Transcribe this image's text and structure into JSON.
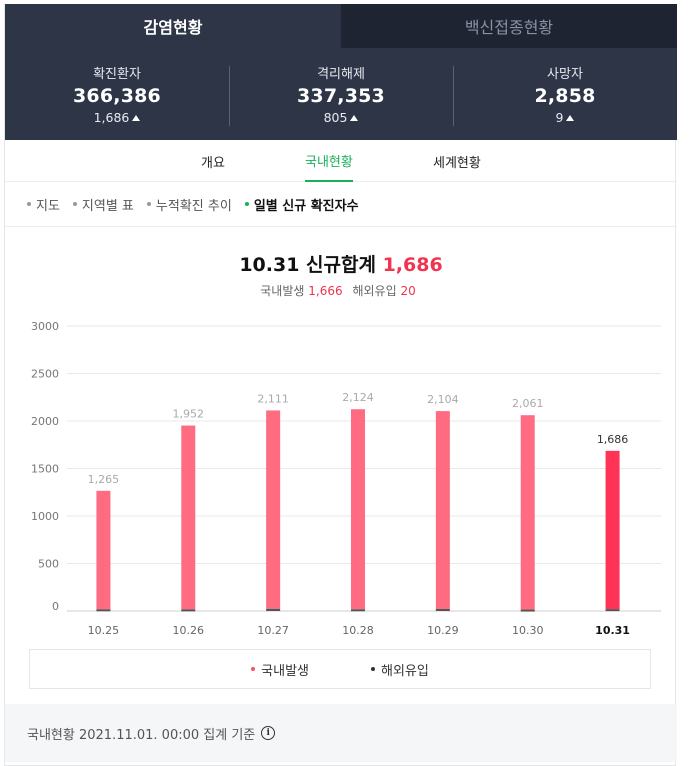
{
  "top_tabs": [
    {
      "label": "감염현황",
      "active": true
    },
    {
      "label": "백신접종현황",
      "active": false
    }
  ],
  "stats": [
    {
      "label": "확진환자",
      "value": "366,386",
      "delta": "1,686"
    },
    {
      "label": "격리해제",
      "value": "337,353",
      "delta": "805"
    },
    {
      "label": "사망자",
      "value": "2,858",
      "delta": "9"
    }
  ],
  "sub_tabs": [
    {
      "label": "개요",
      "active": false
    },
    {
      "label": "국내현황",
      "active": true
    },
    {
      "label": "세계현황",
      "active": false
    }
  ],
  "filters": [
    {
      "label": "지도",
      "active": false
    },
    {
      "label": "지역별 표",
      "active": false
    },
    {
      "label": "누적확진 추이",
      "active": false
    },
    {
      "label": "일별 신규 확진자수",
      "active": true
    }
  ],
  "summary": {
    "title_prefix": "10.31 신규합계",
    "total": "1,686",
    "domestic_label": "국내발생",
    "domestic_value": "1,666",
    "overseas_label": "해외유입",
    "overseas_value": "20"
  },
  "chart_data": {
    "type": "bar",
    "categories": [
      "10.25",
      "10.26",
      "10.27",
      "10.28",
      "10.29",
      "10.30",
      "10.31"
    ],
    "series": [
      {
        "name": "국내발생",
        "values": [
          1247,
          1935,
          2088,
          2106,
          2083,
          2046,
          1666
        ]
      },
      {
        "name": "해외유입",
        "values": [
          18,
          17,
          23,
          18,
          21,
          15,
          20
        ]
      }
    ],
    "totals": [
      1265,
      1952,
      2111,
      2124,
      2104,
      2061,
      1686
    ],
    "total_labels": [
      "1,265",
      "1,952",
      "2,111",
      "2,124",
      "2,104",
      "2,061",
      "1,686"
    ],
    "y_ticks": [
      "0",
      "500",
      "1000",
      "1500",
      "2000",
      "2500",
      "3000"
    ],
    "ylim": [
      0,
      3000
    ],
    "highlight_index": 6,
    "colors": {
      "domestic": "#ff6b81",
      "domestic_highlight": "#ff3355",
      "overseas": "#555555",
      "grid": "#e9e9e9"
    }
  },
  "legend": [
    {
      "label": "국내발생",
      "color": "#ff4d62"
    },
    {
      "label": "해외유입",
      "color": "#333333"
    }
  ],
  "footer": {
    "text": "국내현황 2021.11.01. 00:00 집계 기준",
    "icon": "info-icon"
  }
}
